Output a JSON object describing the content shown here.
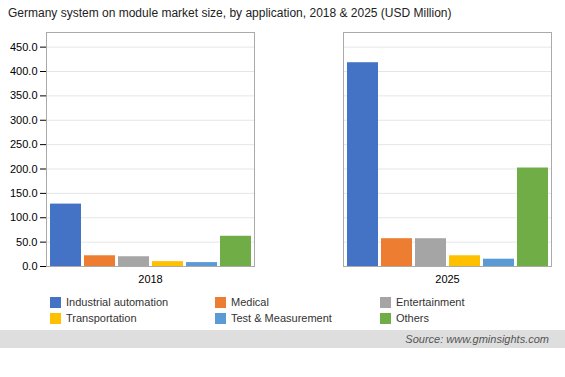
{
  "chart_data": {
    "type": "bar",
    "title": "Germany system on module market size, by application, 2018 & 2025 (USD Million)",
    "categories": [
      "2018",
      "2025"
    ],
    "series": [
      {
        "name": "Industrial automation",
        "color": "#4472c4",
        "values": [
          128,
          418
        ]
      },
      {
        "name": "Medical",
        "color": "#ed7d31",
        "values": [
          22,
          57
        ]
      },
      {
        "name": "Entertainment",
        "color": "#a5a5a5",
        "values": [
          20,
          57
        ]
      },
      {
        "name": "Transportation",
        "color": "#ffc000",
        "values": [
          10,
          22
        ]
      },
      {
        "name": "Test & Measurement",
        "color": "#5b9bd5",
        "values": [
          8,
          15
        ]
      },
      {
        "name": "Others",
        "color": "#70ad47",
        "values": [
          62,
          202
        ]
      }
    ],
    "ylim": [
      0,
      480
    ],
    "yticks": [
      {
        "value": 0,
        "label": "0.0"
      },
      {
        "value": 50,
        "label": "50.0"
      },
      {
        "value": 100,
        "label": "100.0"
      },
      {
        "value": 150,
        "label": "150.0"
      },
      {
        "value": 200,
        "label": "200.0"
      },
      {
        "value": 250,
        "label": "250.0"
      },
      {
        "value": 300,
        "label": "300.0"
      },
      {
        "value": 350,
        "label": "350.0"
      },
      {
        "value": 400,
        "label": "400.0"
      },
      {
        "value": 450,
        "label": "450.0"
      }
    ],
    "grid": true,
    "legend": "bottom",
    "annotations": [
      "Source: www.gminsights.com"
    ]
  }
}
